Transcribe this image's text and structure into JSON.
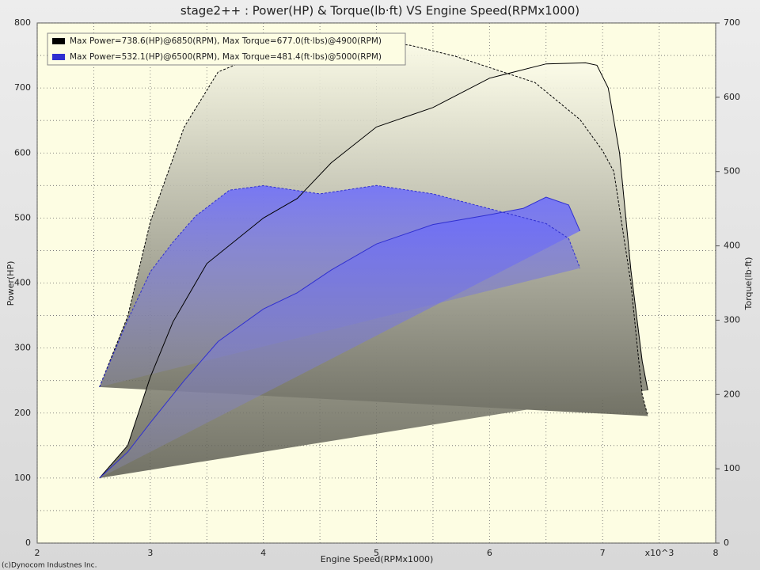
{
  "chart_data": {
    "type": "line",
    "title": "stage2++ : Power(HP) & Torque(lb·ft) VS Engine Speed(RPMx1000)",
    "x_label": "Engine Speed(RPMx1000)",
    "x_multiplier": "x10^3",
    "y_label": "Power(HP)",
    "y2_label": "Torque(lb·ft)",
    "copyright": "(c)Dynocom Industnes Inc.",
    "xlim": [
      2,
      8
    ],
    "xticks": [
      2,
      3,
      4,
      5,
      6,
      7,
      8
    ],
    "x_minor_ticks": [
      2.5,
      3.5,
      4.5,
      5.5,
      6.5,
      7.5
    ],
    "ylim": [
      0,
      800
    ],
    "yticks": [
      0,
      100,
      200,
      300,
      400,
      500,
      600,
      700,
      800
    ],
    "y_minor_ticks": [
      50,
      150,
      250,
      350,
      450,
      550,
      650,
      750
    ],
    "y2lim": [
      0,
      700
    ],
    "y2ticks": [
      0,
      100,
      200,
      300,
      400,
      500,
      600,
      700
    ],
    "grid": true,
    "runs": [
      {
        "name": "Max Power=738.6(HP)@6850(RPM), Max Torque=677.0(ft·lbs)@4900(RPM)",
        "color": "#000000",
        "power": {
          "x": [
            2.55,
            2.8,
            3.0,
            3.2,
            3.5,
            4.0,
            4.3,
            4.6,
            5.0,
            5.5,
            6.0,
            6.5,
            6.85,
            6.95,
            7.05,
            7.15,
            7.25,
            7.35,
            7.4
          ],
          "values": [
            100,
            150,
            255,
            340,
            430,
            500,
            530,
            585,
            640,
            670,
            715,
            737,
            738.6,
            735,
            700,
            600,
            420,
            280,
            235
          ]
        },
        "torque": {
          "x": [
            2.55,
            2.8,
            3.0,
            3.3,
            3.6,
            3.9,
            4.2,
            4.6,
            4.9,
            5.3,
            5.7,
            6.0,
            6.4,
            6.8,
            7.0,
            7.1,
            7.25,
            7.35,
            7.4
          ],
          "values": [
            210,
            305,
            432,
            560,
            634,
            653,
            665,
            672,
            677,
            670,
            655,
            640,
            620,
            570,
            528,
            500,
            350,
            200,
            171
          ]
        }
      },
      {
        "name": "Max Power=532.1(HP)@6500(RPM), Max Torque=481.4(ft·lbs)@5000(RPM)",
        "color": "#3030d0",
        "power": {
          "x": [
            2.55,
            2.8,
            3.0,
            3.3,
            3.6,
            4.0,
            4.3,
            4.6,
            5.0,
            5.5,
            6.0,
            6.3,
            6.5,
            6.7,
            6.8
          ],
          "values": [
            100,
            140,
            185,
            250,
            310,
            360,
            385,
            420,
            460,
            490,
            505,
            515,
            532.1,
            520,
            480
          ]
        },
        "torque": {
          "x": [
            2.55,
            2.8,
            3.0,
            3.2,
            3.4,
            3.7,
            4.0,
            4.5,
            5.0,
            5.5,
            6.0,
            6.5,
            6.7,
            6.8
          ],
          "values": [
            210,
            300,
            365,
            405,
            440,
            475,
            481,
            470,
            481.4,
            470,
            450,
            430,
            410,
            370
          ]
        }
      }
    ]
  }
}
